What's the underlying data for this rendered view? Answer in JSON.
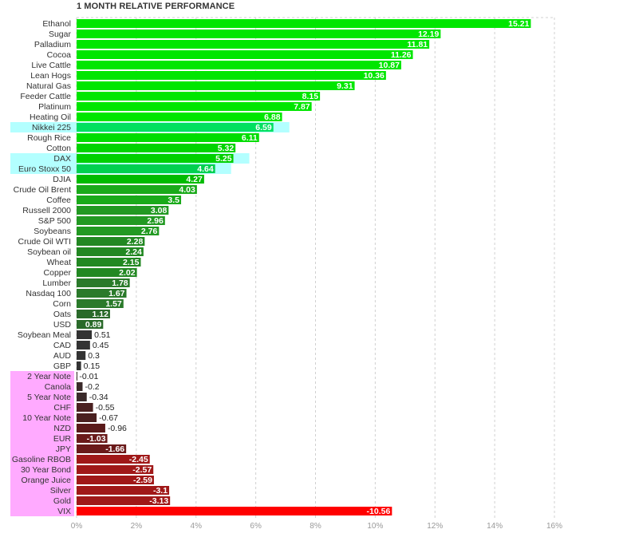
{
  "chart_data": {
    "type": "bar",
    "orientation": "horizontal",
    "title": "1 MONTH RELATIVE PERFORMANCE",
    "xlabel": "",
    "ylabel": "",
    "xlim": [
      0,
      16
    ],
    "x_ticks": [
      "0%",
      "2%",
      "4%",
      "6%",
      "8%",
      "10%",
      "12%",
      "14%",
      "16%"
    ],
    "x_tick_values": [
      0,
      2,
      4,
      6,
      8,
      10,
      12,
      14,
      16
    ],
    "grid": true,
    "legend": "none",
    "highlight_cyan": "#b3ffff",
    "highlight_pink": "#ffaaff",
    "categories": [
      "Ethanol",
      "Sugar",
      "Palladium",
      "Cocoa",
      "Live Cattle",
      "Lean Hogs",
      "Natural Gas",
      "Feeder Cattle",
      "Platinum",
      "Heating Oil",
      "Nikkei 225",
      "Rough Rice",
      "Cotton",
      "DAX",
      "Euro Stoxx 50",
      "DJIA",
      "Crude Oil Brent",
      "Coffee",
      "Russell 2000",
      "S&P 500",
      "Soybeans",
      "Crude Oil WTI",
      "Soybean oil",
      "Wheat",
      "Copper",
      "Lumber",
      "Nasdaq 100",
      "Corn",
      "Oats",
      "USD",
      "Soybean Meal",
      "CAD",
      "AUD",
      "GBP",
      "2 Year Note",
      "Canola",
      "5 Year Note",
      "CHF",
      "10 Year Note",
      "NZD",
      "EUR",
      "JPY",
      "Gasoline RBOB",
      "30 Year Bond",
      "Orange Juice",
      "Silver",
      "Gold",
      "VIX"
    ],
    "values": [
      15.21,
      12.19,
      11.81,
      11.26,
      10.87,
      10.36,
      9.31,
      8.15,
      7.87,
      6.88,
      6.59,
      6.11,
      5.32,
      5.25,
      4.64,
      4.27,
      4.03,
      3.5,
      3.08,
      2.96,
      2.76,
      2.28,
      2.24,
      2.15,
      2.02,
      1.78,
      1.67,
      1.57,
      1.12,
      0.89,
      0.51,
      0.45,
      0.3,
      0.15,
      -0.01,
      -0.2,
      -0.34,
      -0.55,
      -0.67,
      -0.96,
      -1.03,
      -1.66,
      -2.45,
      -2.57,
      -2.59,
      -3.1,
      -3.13,
      -10.56
    ],
    "value_labels": [
      "15.21",
      "12.19",
      "11.81",
      "11.26",
      "10.87",
      "10.36",
      "9.31",
      "8.15",
      "7.87",
      "6.88",
      "6.59",
      "6.11",
      "5.32",
      "5.25",
      "4.64",
      "4.27",
      "4.03",
      "3.5",
      "3.08",
      "2.96",
      "2.76",
      "2.28",
      "2.24",
      "2.15",
      "2.02",
      "1.78",
      "1.67",
      "1.57",
      "1.12",
      "0.89",
      "0.51",
      "0.45",
      "0.3",
      "0.15",
      "-0.01",
      "-0.2",
      "-0.34",
      "-0.55",
      "-0.67",
      "-0.96",
      "-1.03",
      "-1.66",
      "-2.45",
      "-2.57",
      "-2.59",
      "-3.1",
      "-3.13",
      "-10.56"
    ],
    "colors": [
      "#00e600",
      "#00e600",
      "#00e600",
      "#00e600",
      "#00e600",
      "#00e600",
      "#00e600",
      "#00e600",
      "#00e600",
      "#00e600",
      "#00e060",
      "#00dd00",
      "#00d400",
      "#00d000",
      "#00d050",
      "#00bb00",
      "#1aaa1a",
      "#1aaa1a",
      "#229922",
      "#229922",
      "#229922",
      "#228822",
      "#228822",
      "#228822",
      "#228822",
      "#2a7a2a",
      "#2a7a2a",
      "#2a7a2a",
      "#2a6a2a",
      "#2a6a2a",
      "#333333",
      "#333333",
      "#333333",
      "#333333",
      "#3a2a2a",
      "#3a2a2a",
      "#3a2a2a",
      "#4a2020",
      "#4a2020",
      "#5a1a1a",
      "#6a1a1a",
      "#6a1a1a",
      "#a01818",
      "#a01818",
      "#a01818",
      "#a01818",
      "#a01818",
      "#ff0000"
    ],
    "highlights": {
      "Nikkei 225": "cyan",
      "DAX": "cyan",
      "Euro Stoxx 50": "cyan",
      "2 Year Note": "pink",
      "Canola": "pink",
      "5 Year Note": "pink",
      "CHF": "pink",
      "10 Year Note": "pink",
      "NZD": "pink",
      "EUR": "pink",
      "JPY": "pink",
      "Gasoline RBOB": "pink",
      "30 Year Bond": "pink",
      "Orange Juice": "pink",
      "Silver": "pink",
      "Gold": "pink",
      "VIX": "pink"
    }
  }
}
